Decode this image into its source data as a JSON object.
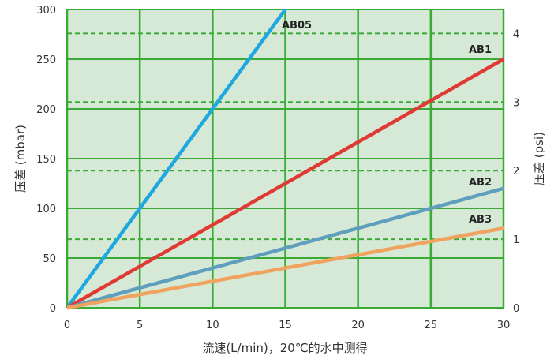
{
  "chart_data": {
    "type": "line",
    "xlabel": "流速(L/min)，20℃的水中测得",
    "ylabel": "压差 (mbar)",
    "y2label": "压差 (psi)",
    "xlim": [
      0,
      30
    ],
    "ylim": [
      0,
      300
    ],
    "y2lim": [
      0,
      4.35
    ],
    "x_ticks": [
      "0",
      "5",
      "10",
      "15",
      "20",
      "25",
      "30"
    ],
    "y_ticks": [
      "0",
      "50",
      "100",
      "150",
      "200",
      "250",
      "300"
    ],
    "y2_ticks": [
      "0",
      "1",
      "2",
      "3",
      "4"
    ],
    "grid": true,
    "background": "#d6e9d6",
    "grid_color": "#3aaa35",
    "series": [
      {
        "name": "AB05",
        "color": "#1fa8e0",
        "x": [
          0,
          15
        ],
        "y": [
          0,
          300
        ]
      },
      {
        "name": "AB1",
        "color": "#e03a34",
        "x": [
          0,
          30
        ],
        "y": [
          0,
          250
        ]
      },
      {
        "name": "AB2",
        "color": "#5f9fbd",
        "x": [
          0,
          30
        ],
        "y": [
          0,
          120
        ]
      },
      {
        "name": "AB3",
        "color": "#f0a35e",
        "x": [
          0,
          30
        ],
        "y": [
          0,
          80
        ]
      }
    ]
  }
}
